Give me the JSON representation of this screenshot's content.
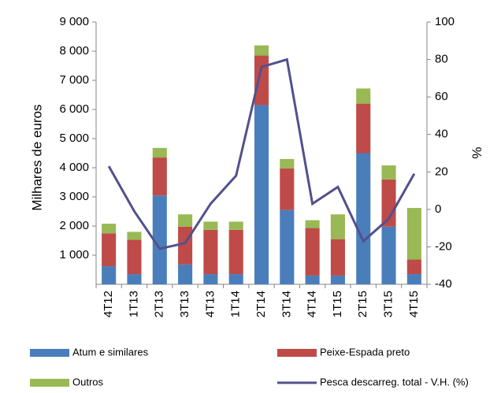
{
  "chart_data": {
    "type": "bar",
    "categories": [
      "4T12",
      "1T13",
      "2T13",
      "3T13",
      "4T13",
      "1T14",
      "2T14",
      "3T14",
      "4T14",
      "1T15",
      "2T15",
      "3T15",
      "4T15"
    ],
    "series": [
      {
        "name": "Atum e similares",
        "color": "#4a7ebb",
        "values": [
          620,
          350,
          3050,
          680,
          350,
          350,
          6150,
          2550,
          300,
          300,
          4500,
          1980,
          350
        ]
      },
      {
        "name": "Peixe-Espada preto",
        "color": "#be4b48",
        "values": [
          1130,
          1180,
          1300,
          1300,
          1520,
          1520,
          1700,
          1430,
          1630,
          1250,
          1700,
          1620,
          500
        ]
      },
      {
        "name": "Outros",
        "color": "#98b954",
        "values": [
          330,
          270,
          330,
          420,
          280,
          280,
          350,
          320,
          270,
          850,
          520,
          480,
          1770
        ]
      },
      {
        "name": "Pesca descarreg. total - V.H. (%)",
        "color": "#52508d",
        "type": "line",
        "axis": "y2",
        "values": [
          23,
          -1,
          -21,
          -18,
          3,
          18,
          76,
          80,
          3,
          12,
          -17,
          -5,
          19
        ]
      }
    ],
    "ylabel": "Milhares de euros",
    "y2label": "%",
    "ylim": [
      0,
      9000
    ],
    "yticks": [
      {
        "value": 1000,
        "label": "1 000"
      },
      {
        "value": 2000,
        "label": "2 000"
      },
      {
        "value": 3000,
        "label": "3 000"
      },
      {
        "value": 4000,
        "label": "4 000"
      },
      {
        "value": 5000,
        "label": "5 000"
      },
      {
        "value": 6000,
        "label": "6 000"
      },
      {
        "value": 7000,
        "label": "7 000"
      },
      {
        "value": 8000,
        "label": "8 000"
      },
      {
        "value": 9000,
        "label": "9 000"
      }
    ],
    "y2lim": [
      -40,
      100
    ],
    "y2ticks": [
      -40,
      -20,
      0,
      20,
      40,
      60,
      80,
      100
    ],
    "legend": "bottom"
  }
}
